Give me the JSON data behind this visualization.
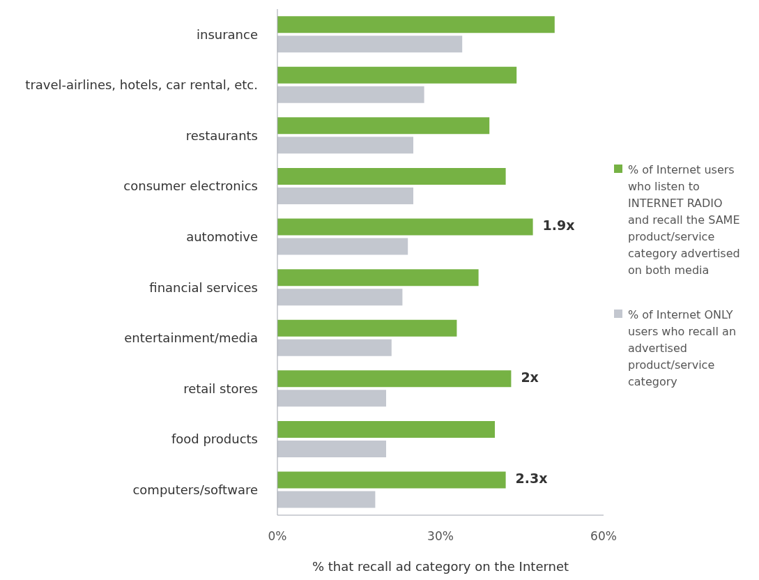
{
  "chart_data": {
    "type": "bar",
    "orientation": "horizontal",
    "categories": [
      "insurance",
      "travel-airlines, hotels, car rental, etc.",
      "restaurants",
      "consumer electronics",
      "automotive",
      "financial services",
      "entertainment/media",
      "retail stores",
      "food products",
      "computers/software"
    ],
    "series": [
      {
        "name": "% of Internet users who listen to INTERNET RADIO and recall the SAME product/service category advertised on both media",
        "color": "#76b244",
        "values": [
          51,
          44,
          39,
          42,
          47,
          37,
          33,
          43,
          40,
          42
        ]
      },
      {
        "name": "% of Internet ONLY users who recall an advertised product/service category",
        "color": "#c3c7cf",
        "values": [
          34,
          27,
          25,
          25,
          24,
          23,
          21,
          20,
          20,
          18
        ]
      }
    ],
    "xlabel": "% that recall ad category on the Internet",
    "xlim": [
      0,
      60
    ],
    "xticks": [
      {
        "value": 0,
        "label": "0%"
      },
      {
        "value": 30,
        "label": "30%"
      },
      {
        "value": 60,
        "label": "60%"
      }
    ],
    "annotations": [
      {
        "text": "1.9x",
        "x": 47,
        "y": "automotive"
      },
      {
        "text": "2x",
        "x": 43,
        "y": "retail stores"
      },
      {
        "text": "2.3x",
        "x": 42,
        "y": "computers/software"
      }
    ],
    "legend": "right",
    "grid": false
  }
}
